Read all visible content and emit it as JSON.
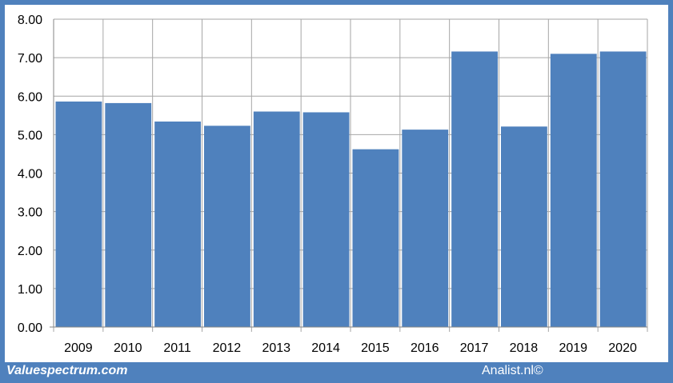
{
  "footer": {
    "left_text": "Valuespectrum.com",
    "right_text": "Analist.nl©"
  },
  "colors": {
    "bar": "#4f81bd",
    "frame": "#4f81bd",
    "grid": "#a6a6a6"
  },
  "chart_data": {
    "type": "bar",
    "title": "",
    "xlabel": "",
    "ylabel": "",
    "categories": [
      "2009",
      "2010",
      "2011",
      "2012",
      "2013",
      "2014",
      "2015",
      "2016",
      "2017",
      "2018",
      "2019",
      "2020"
    ],
    "values": [
      5.86,
      5.82,
      5.34,
      5.23,
      5.6,
      5.58,
      4.62,
      5.13,
      7.16,
      5.21,
      7.1,
      7.16
    ],
    "ylim": [
      0,
      8
    ],
    "yticks": [
      "0.00",
      "1.00",
      "2.00",
      "3.00",
      "4.00",
      "5.00",
      "6.00",
      "7.00",
      "8.00"
    ],
    "grid": true,
    "legend": "none"
  }
}
